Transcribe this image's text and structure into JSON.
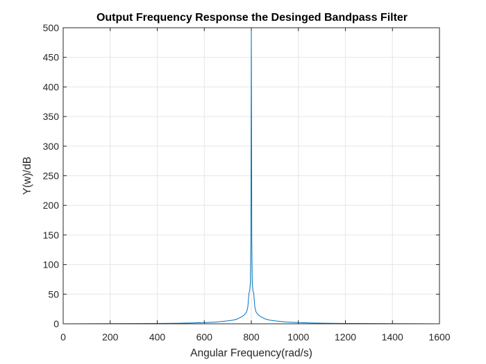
{
  "chart_data": {
    "type": "line",
    "title": "Output Frequency Response the Desinged Bandpass Filter",
    "xlabel": "Angular Frequency(rad/s)",
    "ylabel": "Y(w)/dB",
    "xlim": [
      0,
      1600
    ],
    "ylim": [
      0,
      500
    ],
    "xticks": [
      0,
      200,
      400,
      600,
      800,
      1000,
      1200,
      1400,
      1600
    ],
    "xtick_labels": [
      "0",
      "200",
      "400",
      "600",
      "800",
      "1000",
      "1200",
      "1400",
      "1600"
    ],
    "yticks": [
      0,
      50,
      100,
      150,
      200,
      250,
      300,
      350,
      400,
      450,
      500
    ],
    "ytick_labels": [
      "0",
      "50",
      "100",
      "150",
      "200",
      "250",
      "300",
      "350",
      "400",
      "450",
      "500"
    ],
    "grid": true,
    "series_color": "#0072BD",
    "series": [
      {
        "x": [
          0,
          200,
          400,
          500,
          550,
          600,
          650,
          700,
          720,
          740,
          760,
          770,
          780,
          785,
          790,
          793,
          796,
          798,
          800,
          802,
          804,
          807,
          810,
          815,
          820,
          830,
          840,
          860,
          880,
          900,
          950,
          1000,
          1050,
          1100,
          1200,
          1400,
          1600
        ],
        "y": [
          0,
          0.3,
          0.6,
          1,
          1.5,
          2,
          3,
          5,
          6,
          8,
          12,
          15,
          20,
          28,
          52,
          55,
          70,
          140,
          500,
          140,
          70,
          55,
          52,
          28,
          20,
          15,
          12,
          8,
          6,
          5,
          3,
          2,
          1.5,
          1,
          0.6,
          0.3,
          0
        ]
      }
    ]
  }
}
